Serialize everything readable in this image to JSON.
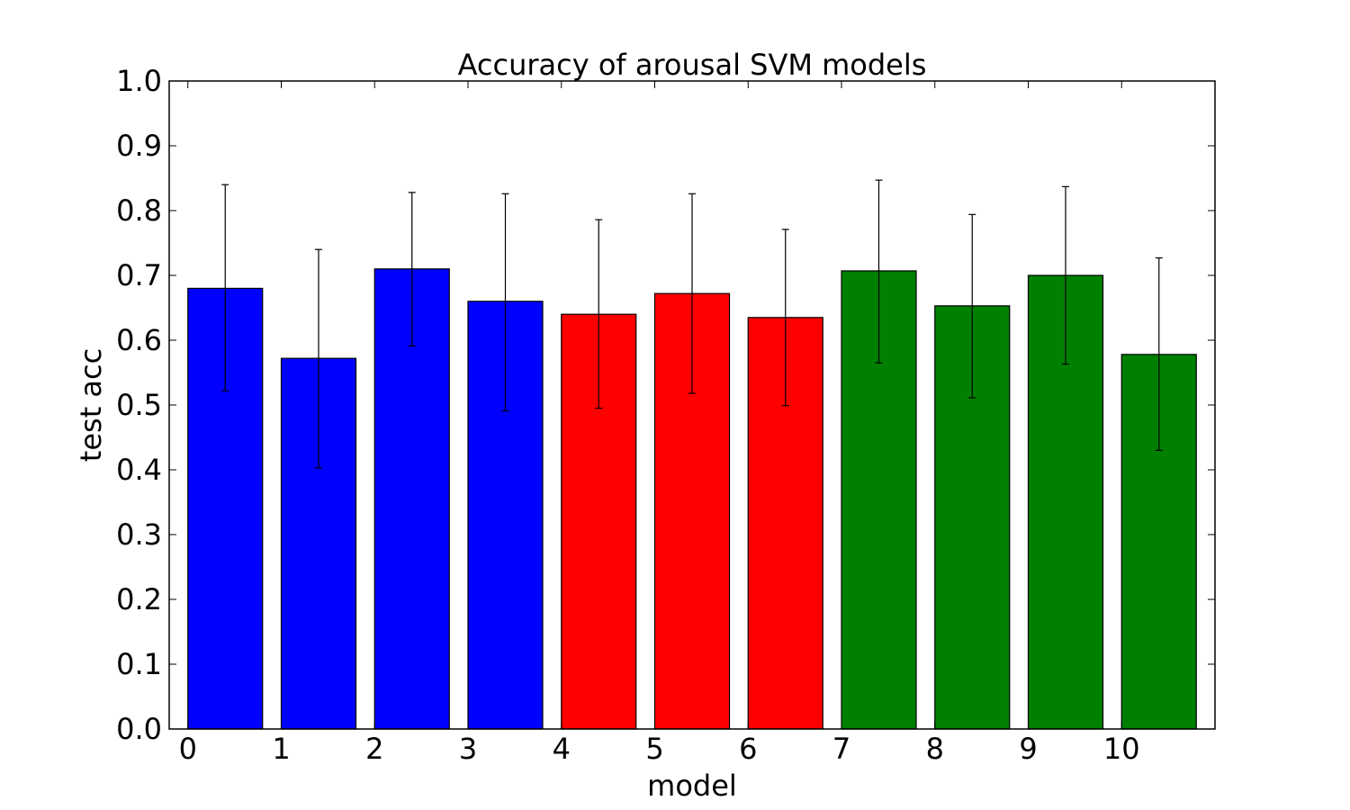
{
  "chart_data": {
    "type": "bar",
    "title": "Accuracy of arousal SVM models",
    "xlabel": "model",
    "ylabel": "test acc",
    "xlim": [
      -0.2,
      11
    ],
    "ylim": [
      0,
      1
    ],
    "grid": false,
    "legend": null,
    "x_ticks": [
      "0",
      "1",
      "2",
      "3",
      "4",
      "5",
      "6",
      "7",
      "8",
      "9",
      "10"
    ],
    "y_ticks": [
      "0.0",
      "0.1",
      "0.2",
      "0.3",
      "0.4",
      "0.5",
      "0.6",
      "0.7",
      "0.8",
      "0.9",
      "1.0"
    ],
    "categories": [
      "0",
      "1",
      "2",
      "3",
      "4",
      "5",
      "6",
      "7",
      "8",
      "9",
      "10"
    ],
    "bar_width": 0.8,
    "bars": [
      {
        "x": 0,
        "value": 0.68,
        "err_low": 0.522,
        "err_high": 0.84,
        "color": "#0000ff"
      },
      {
        "x": 1,
        "value": 0.572,
        "err_low": 0.403,
        "err_high": 0.74,
        "color": "#0000ff"
      },
      {
        "x": 2,
        "value": 0.71,
        "err_low": 0.591,
        "err_high": 0.828,
        "color": "#0000ff"
      },
      {
        "x": 3,
        "value": 0.66,
        "err_low": 0.491,
        "err_high": 0.826,
        "color": "#0000ff"
      },
      {
        "x": 4,
        "value": 0.64,
        "err_low": 0.495,
        "err_high": 0.786,
        "color": "#ff0000"
      },
      {
        "x": 5,
        "value": 0.672,
        "err_low": 0.518,
        "err_high": 0.826,
        "color": "#ff0000"
      },
      {
        "x": 6,
        "value": 0.635,
        "err_low": 0.499,
        "err_high": 0.771,
        "color": "#ff0000"
      },
      {
        "x": 7,
        "value": 0.707,
        "err_low": 0.565,
        "err_high": 0.847,
        "color": "#008000"
      },
      {
        "x": 8,
        "value": 0.653,
        "err_low": 0.511,
        "err_high": 0.794,
        "color": "#008000"
      },
      {
        "x": 9,
        "value": 0.7,
        "err_low": 0.563,
        "err_high": 0.837,
        "color": "#008000"
      },
      {
        "x": 10,
        "value": 0.578,
        "err_low": 0.43,
        "err_high": 0.727,
        "color": "#008000"
      }
    ]
  }
}
